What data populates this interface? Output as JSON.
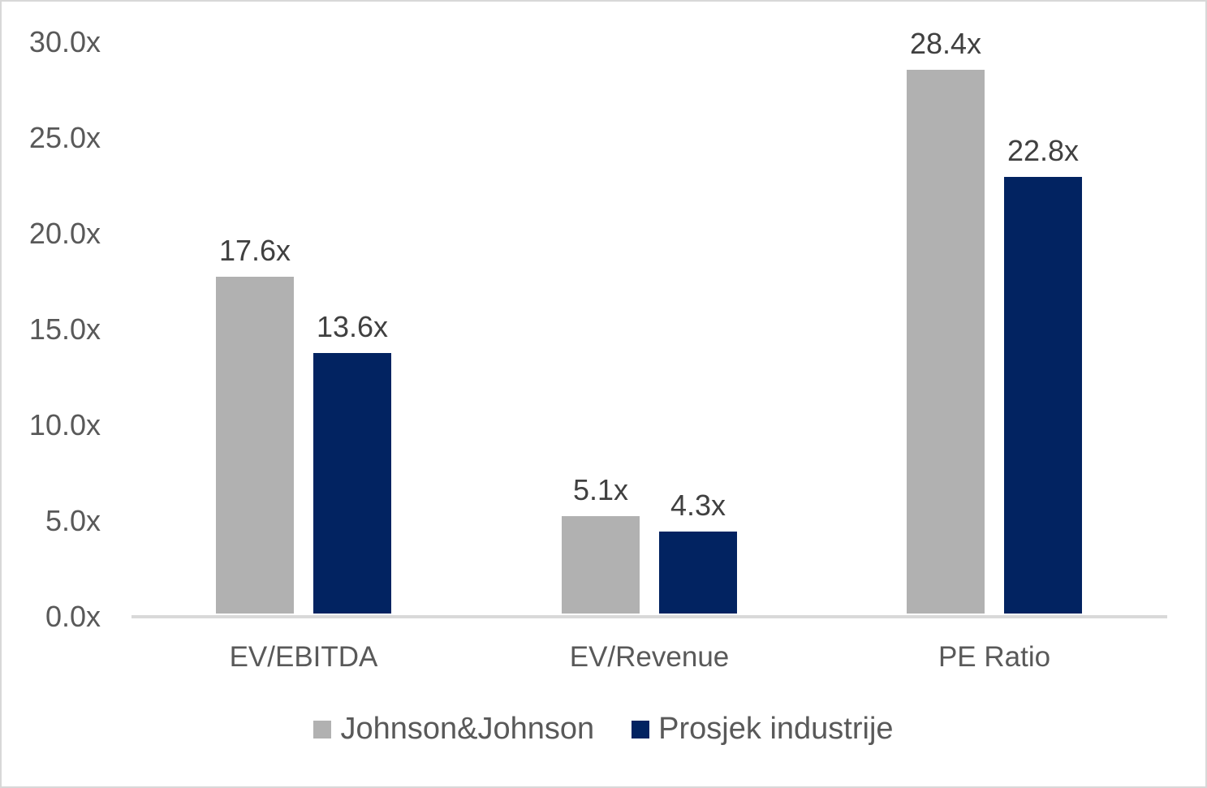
{
  "chart_data": {
    "type": "bar",
    "title": "",
    "xlabel": "",
    "ylabel": "",
    "categories": [
      "EV/EBITDA",
      "EV/Revenue",
      "PE Ratio"
    ],
    "series": [
      {
        "name": "Johnson&Johnson",
        "color": "#b1b1b1",
        "values": [
          17.6,
          5.1,
          28.4
        ],
        "data_labels": [
          "17.6x",
          "5.1x",
          "28.4x"
        ]
      },
      {
        "name": "Prosjek industrije",
        "color": "#022361",
        "values": [
          13.6,
          4.3,
          22.8
        ],
        "data_labels": [
          "13.6x",
          "4.3x",
          "22.8x"
        ]
      }
    ],
    "ylim": [
      0,
      30
    ],
    "y_ticks": [
      {
        "value": 30,
        "label": "30.0x"
      },
      {
        "value": 25,
        "label": "25.0x"
      },
      {
        "value": 20,
        "label": "20.0x"
      },
      {
        "value": 15,
        "label": "15.0x"
      },
      {
        "value": 10,
        "label": "10.0x"
      },
      {
        "value": 5,
        "label": "5.0x"
      },
      {
        "value": 0,
        "label": "0.0x"
      }
    ],
    "grid": false,
    "legend_position": "bottom"
  },
  "colors": {
    "background": "#ffffff",
    "border": "#d8d8d8",
    "axis_line": "#d9d9d9",
    "tick_text": "#595959",
    "category_text": "#595959",
    "value_text": "#404040",
    "legend_text": "#595959"
  }
}
